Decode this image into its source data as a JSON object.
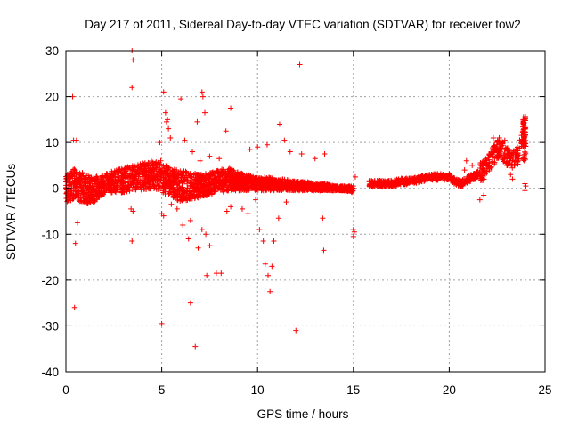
{
  "chart_data": {
    "type": "scatter",
    "title": "Day 217 of 2011, Sidereal Day-to-day VTEC variation (SDTVAR) for receiver tow2",
    "xlabel": "GPS time / hours",
    "ylabel": "SDTVAR / TECUs",
    "xlim": [
      0,
      25
    ],
    "ylim": [
      -40,
      30
    ],
    "xticks": [
      "0",
      "5",
      "10",
      "15",
      "20",
      "25"
    ],
    "yticks": [
      "30",
      "20",
      "10",
      "0",
      "-10",
      "-20",
      "-30",
      "-40"
    ],
    "grid": true,
    "marker": "+",
    "color": "#ff0000",
    "series": [
      {
        "name": "SDTVAR",
        "band": [
          [
            0.0,
            -3.0,
            3.0
          ],
          [
            0.5,
            -2.5,
            4.5
          ],
          [
            1.0,
            -3.5,
            3.0
          ],
          [
            1.5,
            -3.0,
            2.5
          ],
          [
            2.0,
            -1.5,
            3.0
          ],
          [
            2.5,
            -1.0,
            4.0
          ],
          [
            3.0,
            -1.0,
            4.5
          ],
          [
            3.5,
            -0.5,
            5.0
          ],
          [
            4.0,
            -0.5,
            5.5
          ],
          [
            4.5,
            0.0,
            6.0
          ],
          [
            5.0,
            -1.0,
            5.5
          ],
          [
            5.5,
            -2.0,
            4.5
          ],
          [
            6.0,
            -3.0,
            4.0
          ],
          [
            6.5,
            -2.5,
            3.5
          ],
          [
            7.0,
            -2.0,
            3.0
          ],
          [
            7.5,
            -1.5,
            3.5
          ],
          [
            8.0,
            -1.0,
            4.0
          ],
          [
            8.5,
            -0.5,
            4.5
          ],
          [
            9.0,
            -0.5,
            3.5
          ],
          [
            9.5,
            -0.5,
            3.0
          ],
          [
            10.0,
            -0.5,
            2.5
          ],
          [
            10.5,
            -0.5,
            2.5
          ],
          [
            11.0,
            -0.5,
            2.0
          ],
          [
            11.5,
            -0.5,
            2.0
          ],
          [
            12.0,
            -0.5,
            1.5
          ],
          [
            12.5,
            -0.5,
            1.5
          ],
          [
            13.0,
            -0.5,
            1.0
          ],
          [
            13.5,
            -0.5,
            1.0
          ],
          [
            14.0,
            -0.5,
            0.5
          ],
          [
            14.5,
            -0.5,
            0.5
          ],
          [
            15.0,
            -1.0,
            0.5
          ]
        ],
        "trend": [
          [
            15.8,
            1.0
          ],
          [
            16.5,
            1.0
          ],
          [
            17.0,
            1.0
          ],
          [
            17.5,
            1.5
          ],
          [
            18.0,
            1.5
          ],
          [
            18.5,
            2.0
          ],
          [
            19.0,
            2.5
          ],
          [
            19.5,
            2.5
          ],
          [
            20.0,
            2.5
          ],
          [
            20.3,
            1.5
          ],
          [
            20.6,
            1.0
          ],
          [
            21.0,
            2.0
          ],
          [
            21.5,
            3.0
          ],
          [
            21.8,
            4.0
          ],
          [
            22.0,
            5.5
          ],
          [
            22.3,
            7.0
          ],
          [
            22.6,
            9.0
          ],
          [
            23.0,
            7.0
          ],
          [
            23.3,
            6.5
          ],
          [
            23.6,
            7.0
          ],
          [
            23.9,
            13.0
          ]
        ],
        "outliers": [
          [
            0.35,
            20
          ],
          [
            0.4,
            10.5
          ],
          [
            0.55,
            10.5
          ],
          [
            0.5,
            -12
          ],
          [
            0.45,
            -26
          ],
          [
            0.6,
            -7.5
          ],
          [
            3.45,
            30
          ],
          [
            3.5,
            28
          ],
          [
            3.45,
            22
          ],
          [
            3.45,
            -11.5
          ],
          [
            3.5,
            -5
          ],
          [
            3.4,
            -4.5
          ],
          [
            5.0,
            -29.5
          ],
          [
            5.1,
            21
          ],
          [
            5.3,
            15
          ],
          [
            5.35,
            13
          ],
          [
            5.45,
            11
          ],
          [
            5.2,
            16.5
          ],
          [
            5.25,
            14.5
          ],
          [
            5.0,
            -5.5
          ],
          [
            5.1,
            -6
          ],
          [
            6.0,
            19.5
          ],
          [
            6.5,
            -25
          ],
          [
            6.75,
            -34.5
          ],
          [
            6.85,
            14.5
          ],
          [
            7.1,
            21
          ],
          [
            7.15,
            20
          ],
          [
            7.25,
            16.5
          ],
          [
            7.35,
            -19
          ],
          [
            7.85,
            -18.5
          ],
          [
            8.1,
            -18.5
          ],
          [
            8.35,
            12.5
          ],
          [
            8.6,
            17.5
          ],
          [
            6.2,
            10.5
          ],
          [
            6.6,
            8
          ],
          [
            7.0,
            6
          ],
          [
            7.5,
            7
          ],
          [
            8.0,
            6.5
          ],
          [
            7.1,
            -9
          ],
          [
            7.3,
            -10
          ],
          [
            6.4,
            -11
          ],
          [
            6.9,
            -13
          ],
          [
            7.5,
            -12.5
          ],
          [
            6.1,
            -8
          ],
          [
            6.5,
            -7
          ],
          [
            9.6,
            8.5
          ],
          [
            10.0,
            9
          ],
          [
            10.5,
            9.5
          ],
          [
            11.15,
            14
          ],
          [
            11.4,
            10.5
          ],
          [
            10.1,
            -9
          ],
          [
            10.3,
            -11.5
          ],
          [
            10.4,
            -16.5
          ],
          [
            10.55,
            -19
          ],
          [
            10.65,
            -22.5
          ],
          [
            10.75,
            -17
          ],
          [
            10.85,
            -11.5
          ],
          [
            11.1,
            -6.5
          ],
          [
            11.5,
            -3
          ],
          [
            11.7,
            8
          ],
          [
            12.2,
            27
          ],
          [
            12.0,
            -31
          ],
          [
            12.4,
            1.0
          ],
          [
            12.3,
            7.5
          ],
          [
            13.0,
            6.5
          ],
          [
            13.45,
            -13.5
          ],
          [
            13.5,
            7.5
          ],
          [
            13.4,
            -6.5
          ],
          [
            15.0,
            -9.0
          ],
          [
            15.05,
            -9.5
          ],
          [
            15.0,
            -10.5
          ],
          [
            15.1,
            2.5
          ],
          [
            21.6,
            -2.5
          ],
          [
            21.8,
            -1.5
          ],
          [
            22.3,
            11.0
          ],
          [
            22.9,
            10.5
          ],
          [
            23.95,
            1.0
          ],
          [
            24.0,
            0.5
          ],
          [
            23.95,
            -0.5
          ],
          [
            23.2,
            3.0
          ],
          [
            23.3,
            2.0
          ],
          [
            20.9,
            6.0
          ],
          [
            21.2,
            5.0
          ],
          [
            20.8,
            4.0
          ],
          [
            9.9,
            -2.5
          ],
          [
            8.4,
            -5.0
          ],
          [
            8.6,
            -4.0
          ],
          [
            9.2,
            -4.5
          ],
          [
            9.5,
            -5.5
          ],
          [
            4.9,
            10.0
          ],
          [
            4.95,
            6.0
          ],
          [
            5.5,
            -3.5
          ],
          [
            5.8,
            -4.5
          ]
        ]
      }
    ]
  }
}
